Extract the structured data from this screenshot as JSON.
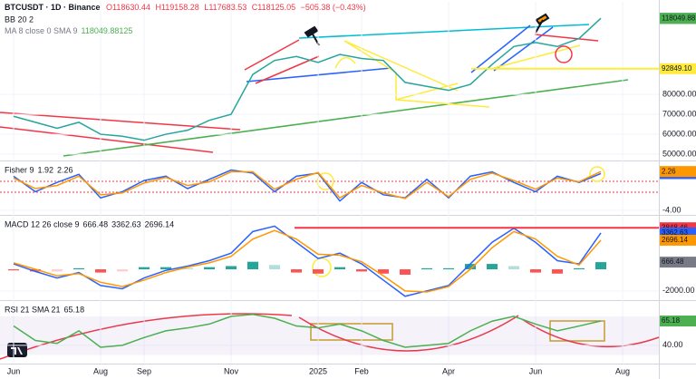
{
  "chart_data": [
    {
      "type": "line",
      "title": "BTCUSDT · 1D · Binance",
      "ohlc": [
        "O118630.44",
        "H119158.28",
        "L117683.53",
        "C118125.05",
        "−505.38 (−0.43%)"
      ],
      "indicators": [
        "BB 20 2",
        "MA 8 close 0 SMA 9"
      ],
      "categories": [
        "Jun",
        null,
        null,
        null,
        "Aug",
        null,
        "Sep",
        null,
        null,
        null,
        "Nov",
        null,
        null,
        null,
        "2025",
        null,
        "Feb",
        null,
        null,
        null,
        "Apr",
        null,
        null,
        null,
        "Jun",
        null,
        null,
        null,
        "Aug"
      ],
      "values": [
        69000,
        66000,
        63000,
        66000,
        60000,
        59000,
        57000,
        60000,
        62000,
        67000,
        70000,
        90000,
        97000,
        99000,
        96000,
        100000,
        98000,
        97000,
        86000,
        84000,
        82000,
        85000,
        95000,
        104000,
        106000,
        104000,
        108000,
        118125.05,
        null
      ],
      "color": "#26a69a",
      "ylim": [
        47300,
        126400
      ],
      "yticks": [
        {
          "value": 50000,
          "label": "50000.00"
        },
        {
          "value": 60000,
          "label": "60000.00"
        },
        {
          "value": 70000,
          "label": "70000.00"
        },
        {
          "value": 80000,
          "label": "80000.00"
        }
      ],
      "grid": true,
      "levels": [
        {
          "value": 118125.05,
          "label": "118125.05",
          "color": "#089981",
          "text_color": "#ffffff"
        },
        {
          "value": 118049.88125,
          "label": "118049.88125",
          "color": "#4caf50",
          "text_color": "#ffffff"
        },
        {
          "value": 92849.1,
          "label": "92849.10",
          "color": "#ffeb3b",
          "text_color": "#131722"
        }
      ]
    },
    {
      "type": "line",
      "title": "Fisher 9",
      "ylim": [
        -4.6,
        3.6
      ],
      "yticks": [
        {
          "value": -4,
          "label": "-4.00"
        }
      ],
      "grid": true,
      "series": [
        {
          "color": "#2962ff",
          "values": [
            1.5,
            -1,
            0.5,
            1.8,
            -2,
            -1,
            0.8,
            1.5,
            -0.5,
            1,
            2.5,
            2,
            -1,
            1.5,
            2,
            -2.5,
            0.5,
            -1.5,
            -2,
            1,
            -2,
            1.5,
            2.2,
            0.5,
            -1,
            1.5,
            0.5,
            1.92,
            null
          ]
        },
        {
          "color": "#ff9800",
          "values": [
            1.2,
            -0.5,
            0,
            1.5,
            -1.5,
            -1.2,
            0.4,
            1.3,
            0,
            0.6,
            2.2,
            2.2,
            -0.6,
            1,
            2.1,
            -2,
            0,
            -1.2,
            -2.1,
            0.5,
            -1.8,
            1,
            2,
            0.8,
            -0.6,
            1.2,
            0.6,
            2.26,
            null
          ]
        }
      ]
    },
    {
      "type": "line",
      "title": "MACD 12 26 close 9",
      "ylim": [
        -2770,
        4790
      ],
      "yticks": [
        {
          "value": -2000,
          "label": "-2000.00"
        }
      ],
      "grid": true,
      "histogram": {
        "color": "#787b86",
        "values": [
          -100,
          -200,
          -200,
          100,
          -300,
          -200,
          200,
          200,
          100,
          200,
          300,
          700,
          400,
          -300,
          -400,
          200,
          -200,
          -400,
          -500,
          100,
          100,
          500,
          500,
          300,
          -300,
          -400,
          100,
          666.48,
          null
        ]
      },
      "series": [
        {
          "color": "#2962ff",
          "values": [
            500,
            -200,
            -800,
            -300,
            -1500,
            -1800,
            -800,
            -100,
            300,
            800,
            1500,
            3500,
            4000,
            2500,
            1000,
            1500,
            500,
            -1000,
            -2500,
            -2000,
            -1500,
            500,
            2500,
            3800,
            2500,
            800,
            500,
            3362.63,
            null
          ]
        },
        {
          "color": "#ff9800",
          "values": [
            600,
            0,
            -600,
            -400,
            -1200,
            -1600,
            -1000,
            -300,
            200,
            600,
            1200,
            2800,
            3600,
            2800,
            1400,
            1300,
            700,
            -600,
            -2000,
            -2100,
            -1600,
            0,
            2000,
            3500,
            2800,
            1200,
            400,
            2696.14,
            null
          ]
        }
      ],
      "levels": [
        {
          "value": 3848.46,
          "label": "3848.46",
          "color": "#f23645",
          "text_color": "#ffffff"
        }
      ]
    },
    {
      "type": "line",
      "title": "RSI 21 SMA 21",
      "ylim": [
        22,
        84
      ],
      "yticks": [
        {
          "value": 40,
          "label": "40.00"
        }
      ],
      "grid": true,
      "band": [
        30,
        70
      ],
      "series": [
        {
          "color": "#4caf50",
          "values": [
            60,
            45,
            42,
            55,
            38,
            40,
            48,
            55,
            58,
            62,
            70,
            72,
            68,
            60,
            58,
            62,
            55,
            45,
            38,
            40,
            42,
            55,
            65,
            70,
            62,
            55,
            60,
            65.18,
            null
          ]
        }
      ]
    }
  ]
}
